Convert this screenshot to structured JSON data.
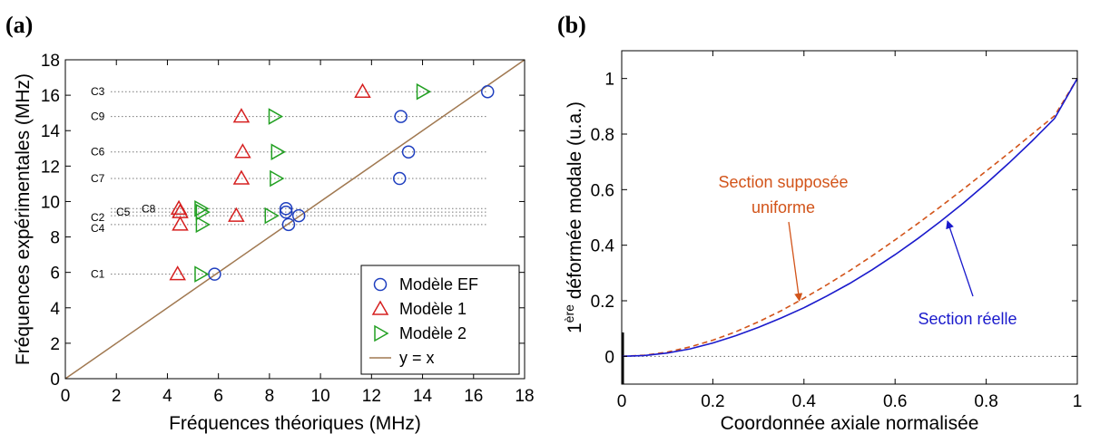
{
  "chart_data": [
    {
      "panel": "(a)",
      "type": "scatter",
      "xlabel": "Fréquences théoriques (MHz)",
      "ylabel": "Fréquences expérimentales (MHz)",
      "xlim": [
        0,
        18
      ],
      "ylim": [
        0,
        18
      ],
      "xticks": [
        0,
        2,
        4,
        6,
        8,
        10,
        12,
        14,
        16,
        18
      ],
      "yticks": [
        0,
        2,
        4,
        6,
        8,
        10,
        12,
        14,
        16,
        18
      ],
      "grid": false,
      "legend_position": "bottom-right",
      "reference_lines": [
        {
          "label": "C1",
          "y": 5.9
        },
        {
          "label": "C4",
          "y": 8.7
        },
        {
          "label": "C2",
          "y": 9.2
        },
        {
          "label": "C5",
          "y": 9.4
        },
        {
          "label": "C8",
          "y": 9.6
        },
        {
          "label": "C7",
          "y": 11.3
        },
        {
          "label": "C6",
          "y": 12.8
        },
        {
          "label": "C9",
          "y": 14.8
        },
        {
          "label": "C3",
          "y": 16.2
        }
      ],
      "series": [
        {
          "name": "Modèle EF",
          "marker": "circle",
          "color": "#1f3fbf",
          "points": [
            [
              5.85,
              5.9
            ],
            [
              8.75,
              8.7
            ],
            [
              9.15,
              9.2
            ],
            [
              8.65,
              9.4
            ],
            [
              8.65,
              9.6
            ],
            [
              13.1,
              11.3
            ],
            [
              13.45,
              12.8
            ],
            [
              13.15,
              14.8
            ],
            [
              16.55,
              16.2
            ]
          ]
        },
        {
          "name": "Modèle 1",
          "marker": "triangle-up",
          "color": "#d62020",
          "points": [
            [
              4.4,
              5.9
            ],
            [
              4.5,
              8.7
            ],
            [
              6.7,
              9.2
            ],
            [
              4.5,
              9.4
            ],
            [
              4.45,
              9.6
            ],
            [
              6.9,
              11.3
            ],
            [
              6.95,
              12.8
            ],
            [
              6.9,
              14.8
            ],
            [
              11.65,
              16.2
            ]
          ]
        },
        {
          "name": "Modèle 2",
          "marker": "triangle-right",
          "color": "#22a022",
          "points": [
            [
              5.3,
              5.9
            ],
            [
              5.35,
              8.7
            ],
            [
              8.05,
              9.2
            ],
            [
              5.35,
              9.4
            ],
            [
              5.3,
              9.6
            ],
            [
              8.25,
              11.3
            ],
            [
              8.3,
              12.8
            ],
            [
              8.2,
              14.8
            ],
            [
              14.0,
              16.2
            ]
          ]
        },
        {
          "name": "y = x",
          "type": "line",
          "color": "#a07850",
          "points": [
            [
              0,
              0
            ],
            [
              18,
              18
            ]
          ]
        }
      ]
    },
    {
      "panel": "(b)",
      "type": "line",
      "xlabel": "Coordonnée axiale normalisée",
      "ylabel_prefix": "1",
      "ylabel_sup": "ère",
      "ylabel_rest": " déformée modale (u.a.)",
      "xlim": [
        0,
        1
      ],
      "ylim": [
        -0.1,
        1.1
      ],
      "xticks": [
        0,
        0.2,
        0.4,
        0.6,
        0.8,
        1
      ],
      "yticks": [
        0,
        0.2,
        0.4,
        0.6,
        0.8,
        1
      ],
      "grid": false,
      "zero_line": true,
      "series": [
        {
          "name": "Section supposée uniforme",
          "style": "dashed",
          "color": "#d2541a",
          "x": [
            0,
            0.05,
            0.1,
            0.15,
            0.2,
            0.25,
            0.3,
            0.35,
            0.4,
            0.45,
            0.5,
            0.55,
            0.6,
            0.65,
            0.7,
            0.75,
            0.8,
            0.85,
            0.9,
            0.95,
            1
          ],
          "y": [
            0,
            0.004,
            0.015,
            0.034,
            0.058,
            0.088,
            0.124,
            0.164,
            0.209,
            0.257,
            0.308,
            0.362,
            0.419,
            0.478,
            0.539,
            0.602,
            0.667,
            0.732,
            0.799,
            0.866,
            1
          ]
        },
        {
          "name": "Section réelle",
          "style": "solid",
          "color": "#1a1acc",
          "x": [
            0,
            0.05,
            0.1,
            0.15,
            0.2,
            0.25,
            0.3,
            0.35,
            0.4,
            0.45,
            0.5,
            0.55,
            0.6,
            0.65,
            0.7,
            0.75,
            0.8,
            0.85,
            0.9,
            0.95,
            1
          ],
          "y": [
            0,
            0.003,
            0.012,
            0.027,
            0.048,
            0.074,
            0.104,
            0.138,
            0.175,
            0.217,
            0.262,
            0.312,
            0.366,
            0.424,
            0.486,
            0.552,
            0.622,
            0.696,
            0.774,
            0.856,
            1
          ]
        }
      ],
      "annotations": [
        {
          "text_lines": [
            "Section supposée",
            "uniforme"
          ],
          "color": "#d2541a",
          "target": [
            0.39,
            0.2
          ]
        },
        {
          "text_lines": [
            "Section réelle"
          ],
          "color": "#1a1acc",
          "target": [
            0.715,
            0.5
          ]
        }
      ]
    }
  ]
}
